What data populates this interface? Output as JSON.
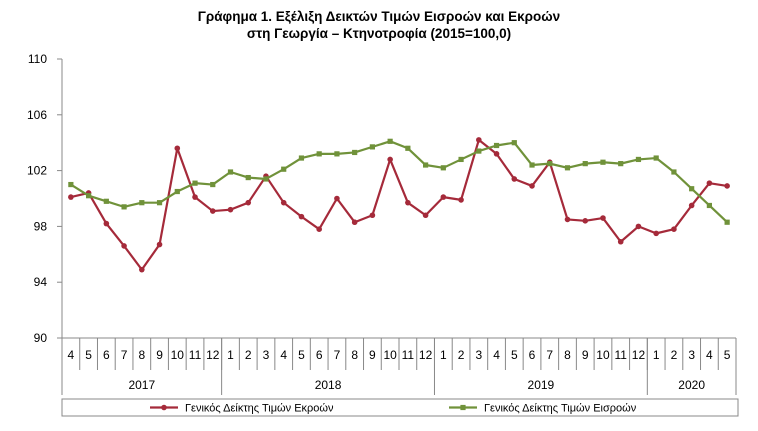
{
  "chart_data": {
    "type": "line",
    "title": "Γράφημα 1. Εξέλιξη Δεικτών Τιμών Εισροών και Εκροών",
    "subtitle": "στη Γεωργία – Κτηνοτροφία (2015=100,0)",
    "xlabel": "",
    "ylabel": "",
    "ylim": [
      90,
      110
    ],
    "yticks": [
      "90",
      "94",
      "98",
      "102",
      "106",
      "110"
    ],
    "grid": false,
    "legend_position": "bottom",
    "categories": [
      "4",
      "5",
      "6",
      "7",
      "8",
      "9",
      "10",
      "11",
      "12",
      "1",
      "2",
      "3",
      "4",
      "5",
      "6",
      "7",
      "8",
      "9",
      "10",
      "11",
      "12",
      "1",
      "2",
      "3",
      "4",
      "5",
      "6",
      "7",
      "8",
      "9",
      "10",
      "11",
      "12",
      "1",
      "2",
      "3",
      "4",
      "5"
    ],
    "year_groups": [
      {
        "label": "2017",
        "count": 9
      },
      {
        "label": "2018",
        "count": 12
      },
      {
        "label": "2019",
        "count": 12
      },
      {
        "label": "2020",
        "count": 5
      }
    ],
    "series": [
      {
        "name": "Γενικός Δείκτης Τιμών Εκροών",
        "color": "#a52a3a",
        "values": [
          100.1,
          100.4,
          98.2,
          96.6,
          94.9,
          96.7,
          103.6,
          100.1,
          99.1,
          99.2,
          99.7,
          101.6,
          99.7,
          98.7,
          97.8,
          100.0,
          98.3,
          98.8,
          102.8,
          99.7,
          98.8,
          100.1,
          99.9,
          104.2,
          103.2,
          101.4,
          100.9,
          102.6,
          98.5,
          98.4,
          98.6,
          96.9,
          98.0,
          97.5,
          97.8,
          99.5,
          101.1,
          100.9
        ]
      },
      {
        "name": "Γενικός Δείκτης Τιμών Εισροών",
        "color": "#70923a",
        "values": [
          101.0,
          100.2,
          99.8,
          99.4,
          99.7,
          99.7,
          100.5,
          101.1,
          101.0,
          101.9,
          101.5,
          101.4,
          102.1,
          102.9,
          103.2,
          103.2,
          103.3,
          103.7,
          104.1,
          103.6,
          102.4,
          102.2,
          102.8,
          103.4,
          103.8,
          104.0,
          102.4,
          102.5,
          102.2,
          102.5,
          102.6,
          102.5,
          102.8,
          102.9,
          101.9,
          100.7,
          99.5,
          98.3
        ]
      }
    ]
  }
}
